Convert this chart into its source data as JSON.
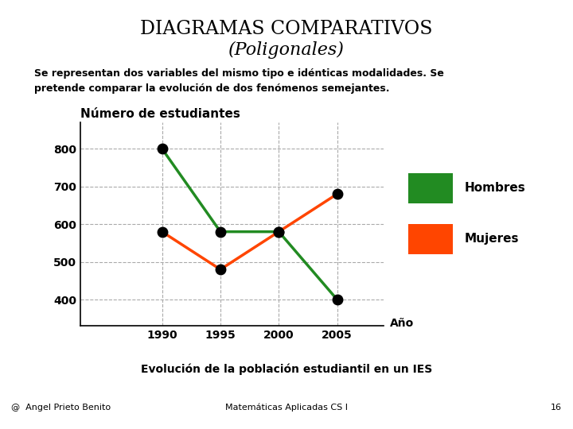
{
  "title_line1": "DIAGRAMAS COMPARATIVOS",
  "title_line2": "(Poligonales)",
  "title_bg": "#F5C200",
  "subtitle": "Se representan dos variables del mismo tipo e idénticas modalidades. Se\npretende comparar la evolución de dos fenómenos semejantes.",
  "years": [
    1990,
    1995,
    2000,
    2005
  ],
  "hombres": [
    800,
    580,
    580,
    400
  ],
  "mujeres": [
    580,
    480,
    580,
    680
  ],
  "ylabel": "Número de estudiantes",
  "xlabel": "Año",
  "ylim_min": 330,
  "ylim_max": 870,
  "yticks": [
    400,
    500,
    600,
    700,
    800
  ],
  "color_hombres": "#228B22",
  "color_mujeres": "#FF4500",
  "marker_color": "#000000",
  "grid_color": "#AAAAAA",
  "footer_text": "Evolución de la población estudiantil en un IES",
  "footer_bg": "#CCFFCC",
  "left_footer": "@  Angel Prieto Benito",
  "center_footer": "Matemáticas Aplicadas CS I",
  "right_footer": "16",
  "bg_color": "#FFFFFF",
  "line_width": 2.5,
  "marker_size": 9
}
